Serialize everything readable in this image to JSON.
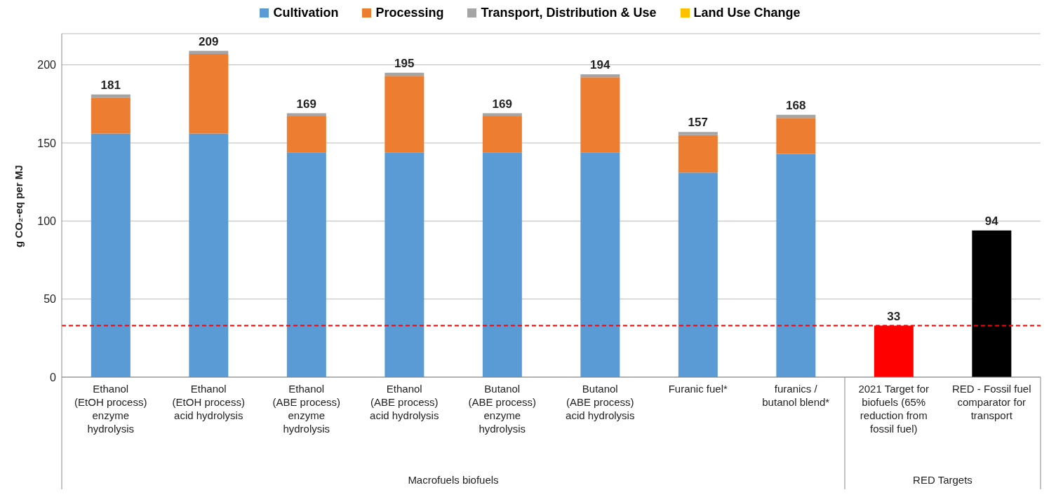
{
  "chart_data": {
    "type": "bar",
    "stacked": true,
    "ylabel": "g CO₂-eq per MJ",
    "categories": [
      "Ethanol\n(EtOH process)\nenzyme\nhydrolysis",
      "Ethanol\n(EtOH process)\nacid hydrolysis",
      "Ethanol\n(ABE process)\nenzyme\nhydrolysis",
      "Ethanol\n(ABE process)\nacid hydrolysis",
      "Butanol\n(ABE process)\nenzyme\nhydrolysis",
      "Butanol\n(ABE process)\nacid hydrolysis",
      "Furanic fuel*",
      "furanics /\nbutanol blend*",
      "2021 Target for\nbiofuels (65%\nreduction from\nfossil fuel)",
      "RED - Fossil fuel\ncomparator for\ntransport"
    ],
    "series": [
      {
        "name": "Cultivation",
        "color": "#5b9bd5",
        "values": [
          156,
          156,
          144,
          144,
          144,
          144,
          131,
          143,
          null,
          null
        ]
      },
      {
        "name": "Processing",
        "color": "#ed7d31",
        "values": [
          23,
          51,
          23,
          49,
          23,
          48,
          24,
          23,
          null,
          null
        ]
      },
      {
        "name": "Transport, Distribution & Use",
        "color": "#a5a5a5",
        "values": [
          2,
          2,
          2,
          2,
          2,
          2,
          2,
          2,
          null,
          null
        ]
      },
      {
        "name": "Land Use Change",
        "color": "#ffc000",
        "values": [
          null,
          null,
          null,
          null,
          null,
          null,
          null,
          null,
          null,
          null
        ]
      },
      {
        "colors": [
          "#ff0000",
          "#ff0000",
          "#ff0000",
          "#ff0000",
          "#ff0000",
          "#ff0000",
          "#ff0000",
          "#ff0000",
          "#ff0000",
          "#000000"
        ],
        "values": [
          null,
          null,
          null,
          null,
          null,
          null,
          null,
          null,
          33,
          94
        ]
      }
    ],
    "totals": [
      "181",
      "209",
      "169",
      "195",
      "169",
      "194",
      "157",
      "168",
      "33",
      "94"
    ],
    "ylim": [
      0,
      220
    ],
    "yticks": [
      0,
      50,
      100,
      150,
      200
    ],
    "grid": "y",
    "legend": "top",
    "ref_lines": [
      {
        "axis": "y",
        "value": 33,
        "color": "#ff0000",
        "line_style": "dashed"
      }
    ],
    "annotations": [
      "Macrofuels biofuels",
      "RED Targets"
    ]
  }
}
